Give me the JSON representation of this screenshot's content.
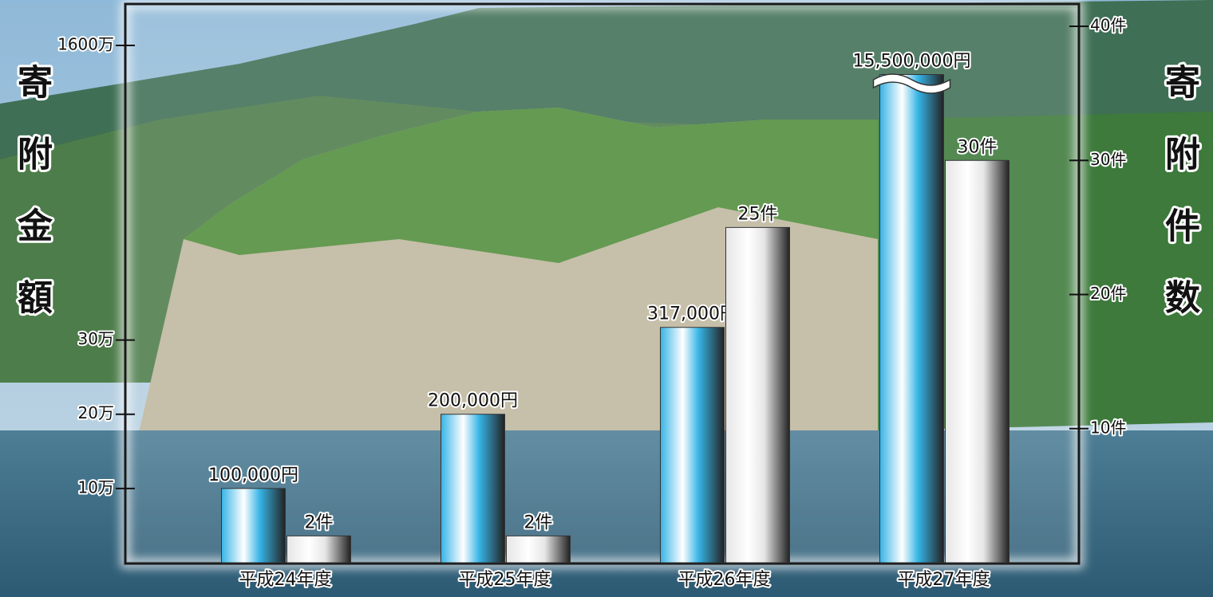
{
  "chart_data": {
    "type": "bar",
    "categories": [
      "平成24年度",
      "平成25年度",
      "平成26年度",
      "平成27年度"
    ],
    "series": [
      {
        "name": "寄附金額",
        "color": "#36b4e6",
        "values": [
          100000,
          200000,
          317000,
          15500000
        ],
        "value_labels": [
          "100,000円",
          "200,000円",
          "317,000円",
          "15,500,000円"
        ]
      },
      {
        "name": "寄附件数",
        "color": "#e6e6e6",
        "axis": "y2",
        "values": [
          2,
          2,
          25,
          30
        ],
        "value_labels": [
          "2件",
          "2件",
          "25件",
          "30件"
        ]
      }
    ],
    "ylim": [
      0,
      16000000
    ],
    "y_break": [
      350000,
      15000000
    ],
    "yticks": [
      {
        "value": 100000,
        "label": "10万"
      },
      {
        "value": 200000,
        "label": "20万"
      },
      {
        "value": 300000,
        "label": "30万"
      },
      {
        "value": 16000000,
        "label": "1600万"
      }
    ],
    "y2lim": [
      0,
      40
    ],
    "y2ticks": [
      {
        "value": 10,
        "label": "10件"
      },
      {
        "value": 20,
        "label": "20件"
      },
      {
        "value": 30,
        "label": "30件"
      },
      {
        "value": 40,
        "label": "40件"
      }
    ]
  }
}
